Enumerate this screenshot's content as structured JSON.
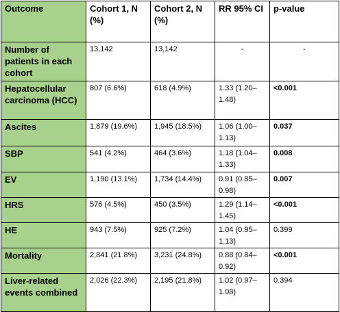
{
  "table": {
    "headers": [
      "Outcome",
      "Cohort 1, N (%)",
      "Cohort 2, N (%)",
      "RR 95% CI",
      "p-value"
    ],
    "rows": [
      {
        "outcome": "Number of patients in each cohort",
        "cohort1": "13,142",
        "cohort2": "13,142",
        "rr": "-",
        "p": "-",
        "p_bold": false
      },
      {
        "outcome": "Hepatocellular carcinoma (HCC)",
        "cohort1": "807 (6.6%)",
        "cohort2": "618 (4.9%)",
        "rr": "1.33 (1.20–1.48)",
        "p": "<0.001",
        "p_bold": true
      },
      {
        "outcome": "Ascites",
        "cohort1": "1,879 (19.6%)",
        "cohort2": "1,945 (18.5%)",
        "rr": "1.06 (1.00–1.13)",
        "p": "0.037",
        "p_bold": true
      },
      {
        "outcome": "SBP",
        "cohort1": "541 (4.2%)",
        "cohort2": "464 (3.6%)",
        "rr": "1.18 (1.04–1.33)",
        "p": "0.008",
        "p_bold": true
      },
      {
        "outcome": "EV",
        "cohort1": "1,190 (13.1%)",
        "cohort2": "1,734 (14.4%)",
        "rr": "0.91 (0.85–0.98)",
        "p": "0.007",
        "p_bold": true
      },
      {
        "outcome": "HRS",
        "cohort1": "576 (4.5%)",
        "cohort2": "450 (3.5%)",
        "rr": "1.29 (1.14–1.45)",
        "p": "<0.001",
        "p_bold": true
      },
      {
        "outcome": "HE",
        "cohort1": "943 (7.5%)",
        "cohort2": "925 (7.2%)",
        "rr": "1.04 (0.95–1.13)",
        "p": "0.399",
        "p_bold": false
      },
      {
        "outcome": "Mortality",
        "cohort1": "2,841 (21.8%)",
        "cohort2": "3,231 (24.8%)",
        "rr": "0.88 (0.84–0.92)",
        "p": "<0.001",
        "p_bold": true
      },
      {
        "outcome": "Liver-related events combined",
        "cohort1": "2,026 (22.3%)",
        "cohort2": "2,195 (21.8%)",
        "rr": "1.02 (0.97–1.08)",
        "p": "0.394",
        "p_bold": false
      }
    ]
  },
  "colors": {
    "header_fill": "#a9d18e",
    "border": "#000000"
  }
}
